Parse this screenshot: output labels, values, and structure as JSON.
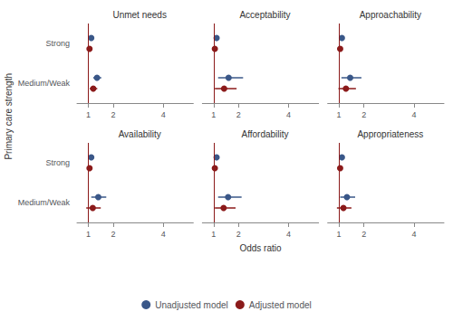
{
  "chart_data": {
    "type": "scatter",
    "marker": "circle",
    "xlabel": "Odds ratio",
    "ylabel": "Primary care strength",
    "categories": [
      "Strong",
      "Medium/Weak"
    ],
    "xlim": [
      0.55,
      5.2
    ],
    "xticks": [
      1,
      2,
      4
    ],
    "grid": false,
    "legend": "bottom",
    "reference_line": {
      "x": 1,
      "color": "#8b1a1a"
    },
    "panels": [
      {
        "title": "Unmet needs",
        "series": [
          {
            "name": "Unadjusted model",
            "color": "#3a5788",
            "values": [
              1.12,
              1.35
            ],
            "ci_low": [
              1.05,
              1.2
            ],
            "ci_high": [
              1.2,
              1.52
            ]
          },
          {
            "name": "Adjusted model",
            "color": "#8b1a1a",
            "values": [
              1.05,
              1.2
            ],
            "ci_low": [
              0.98,
              1.06
            ],
            "ci_high": [
              1.13,
              1.36
            ]
          }
        ]
      },
      {
        "title": "Acceptability",
        "series": [
          {
            "name": "Unadjusted model",
            "color": "#3a5788",
            "values": [
              1.12,
              1.6
            ],
            "ci_low": [
              1.05,
              1.18
            ],
            "ci_high": [
              1.2,
              2.18
            ]
          },
          {
            "name": "Adjusted model",
            "color": "#8b1a1a",
            "values": [
              1.05,
              1.42
            ],
            "ci_low": [
              0.98,
              1.05
            ],
            "ci_high": [
              1.13,
              1.92
            ]
          }
        ]
      },
      {
        "title": "Approachability",
        "series": [
          {
            "name": "Unadjusted model",
            "color": "#3a5788",
            "values": [
              1.12,
              1.45
            ],
            "ci_low": [
              1.05,
              1.1
            ],
            "ci_high": [
              1.2,
              1.9
            ]
          },
          {
            "name": "Adjusted model",
            "color": "#8b1a1a",
            "values": [
              1.05,
              1.28
            ],
            "ci_low": [
              0.98,
              0.98
            ],
            "ci_high": [
              1.13,
              1.68
            ]
          }
        ]
      },
      {
        "title": "Availability",
        "series": [
          {
            "name": "Unadjusted model",
            "color": "#3a5788",
            "values": [
              1.12,
              1.4
            ],
            "ci_low": [
              1.05,
              1.12
            ],
            "ci_high": [
              1.2,
              1.72
            ]
          },
          {
            "name": "Adjusted model",
            "color": "#8b1a1a",
            "values": [
              1.05,
              1.18
            ],
            "ci_low": [
              0.98,
              0.92
            ],
            "ci_high": [
              1.13,
              1.5
            ]
          }
        ]
      },
      {
        "title": "Affordability",
        "series": [
          {
            "name": "Unadjusted model",
            "color": "#3a5788",
            "values": [
              1.12,
              1.58
            ],
            "ci_low": [
              1.05,
              1.18
            ],
            "ci_high": [
              1.2,
              2.12
            ]
          },
          {
            "name": "Adjusted model",
            "color": "#8b1a1a",
            "values": [
              1.05,
              1.4
            ],
            "ci_low": [
              0.98,
              1.05
            ],
            "ci_high": [
              1.13,
              1.88
            ]
          }
        ]
      },
      {
        "title": "Appropriateness",
        "series": [
          {
            "name": "Unadjusted model",
            "color": "#3a5788",
            "values": [
              1.12,
              1.32
            ],
            "ci_low": [
              1.05,
              1.05
            ],
            "ci_high": [
              1.2,
              1.65
            ]
          },
          {
            "name": "Adjusted model",
            "color": "#8b1a1a",
            "values": [
              1.05,
              1.18
            ],
            "ci_low": [
              0.98,
              0.92
            ],
            "ci_high": [
              1.13,
              1.5
            ]
          }
        ]
      }
    ]
  }
}
